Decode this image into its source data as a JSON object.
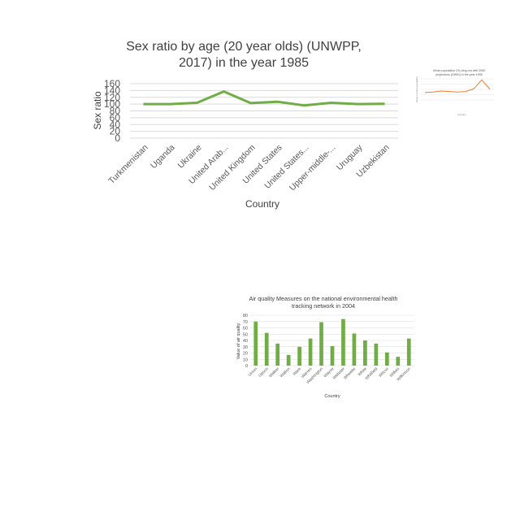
{
  "charts": {
    "main": {
      "title_line1": "Sex ratio by age (20 year olds) (UNWPP,",
      "title_line2": "2017) in the year 1985",
      "xlabel": "Country",
      "ylabel": "Sex ratio"
    },
    "urban": {
      "title_line1": "Urban population (%) long-run with 2050",
      "title_line2": "projections (OWID) in the year 1955",
      "xlabel": "Country",
      "ylabel": "Share of urban population"
    },
    "air": {
      "title_line1": "Air quality Measures on the national environmental health",
      "title_line2": "tracking network in 2004",
      "xlabel": "Country",
      "ylabel": "Value of air quality"
    }
  },
  "chart_data": [
    {
      "type": "line",
      "title": "Sex ratio by age (20 year olds) (UNWPP, 2017) in the year 1985",
      "xlabel": "Country",
      "ylabel": "Sex ratio",
      "categories": [
        "Turkmenistan",
        "Uganda",
        "Ukraine",
        "United Arab...",
        "United Kingdom",
        "United States",
        "United States...",
        "Upper-middle-...",
        "Uruguay",
        "Uzbekistan"
      ],
      "values": [
        100,
        100,
        104,
        137,
        103,
        107,
        96,
        104,
        100,
        101
      ],
      "ylim": [
        0,
        160
      ],
      "yticks": [
        0,
        20,
        40,
        60,
        80,
        100,
        120,
        140,
        160
      ],
      "grid": true,
      "color": "#70ad47"
    },
    {
      "type": "line",
      "title": "Urban population (%) long-run with 2050 projections (OWID) in the year 1955",
      "xlabel": "Country",
      "ylabel": "Share of urban population",
      "categories": [
        "",
        "",
        "",
        "",
        "",
        "",
        "",
        "",
        ""
      ],
      "values": [
        14,
        15,
        17,
        16,
        15,
        16,
        21,
        38,
        20
      ],
      "ylim": [
        0,
        40
      ],
      "yticks": [
        0,
        10,
        20,
        30,
        40
      ],
      "grid": true,
      "color": "#ed7d31"
    },
    {
      "type": "bar",
      "title": "Air quality Measures on the national environmental health tracking network in 2004",
      "xlabel": "Country",
      "ylabel": "Value of air quality",
      "categories": [
        "Union",
        "Upson",
        "Walker",
        "Walton",
        "Ware",
        "Warren",
        "Washington",
        "Wayne",
        "Webster",
        "Wheeler",
        "White",
        "Whitfield",
        "Wilcox",
        "Wilkes",
        "Wilkinson"
      ],
      "values": [
        70,
        52,
        35,
        17,
        30,
        43,
        69,
        31,
        74,
        51,
        40,
        35,
        21,
        14,
        43
      ],
      "ylim": [
        0,
        80
      ],
      "yticks": [
        0,
        10,
        20,
        30,
        40,
        50,
        60,
        70,
        80
      ],
      "grid": true,
      "color": "#70ad47"
    }
  ]
}
